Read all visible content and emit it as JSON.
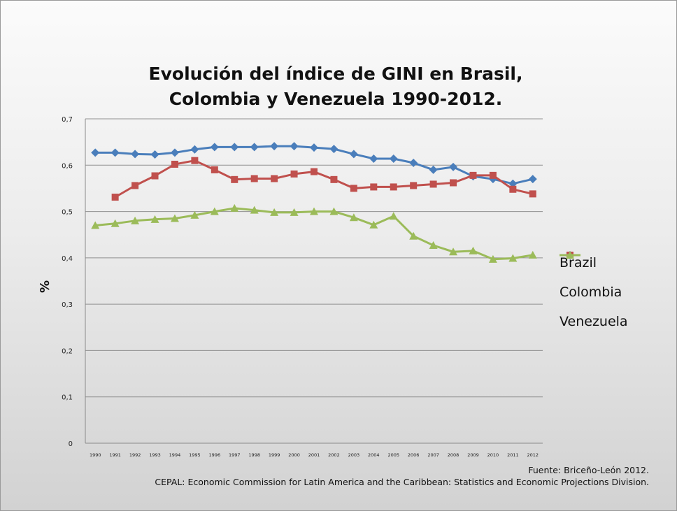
{
  "chart_data": {
    "type": "line",
    "title": "Evolución del índice de GINI en Brasil, Colombia y Venezuela 1990-2012.",
    "xlabel": "",
    "ylabel": "%",
    "ylim": [
      0,
      0.7
    ],
    "y_ticks": [
      "0",
      "0,1",
      "0,2",
      "0,3",
      "0,4",
      "0,5",
      "0,6",
      "0,7"
    ],
    "grid": true,
    "legend_position": "right",
    "categories": [
      "1990",
      "1991",
      "1992",
      "1993",
      "1994",
      "1995",
      "1996",
      "1997",
      "1998",
      "1999",
      "2000",
      "2001",
      "2002",
      "2003",
      "2004",
      "2005",
      "2006",
      "2007",
      "2008",
      "2009",
      "2010",
      "2011",
      "2012"
    ],
    "series": [
      {
        "name": "Brazil",
        "color": "#4a7ebb",
        "marker": "diamond",
        "values": [
          0.627,
          0.627,
          0.624,
          0.623,
          0.627,
          0.634,
          0.639,
          0.639,
          0.639,
          0.641,
          0.641,
          0.638,
          0.635,
          0.624,
          0.614,
          0.614,
          0.605,
          0.59,
          0.596,
          0.576,
          0.57,
          0.56,
          0.57
        ]
      },
      {
        "name": "Colombia",
        "color": "#c0504d",
        "marker": "square",
        "values": [
          null,
          0.531,
          0.556,
          0.577,
          0.602,
          0.61,
          0.59,
          0.569,
          0.571,
          0.571,
          0.581,
          0.586,
          0.569,
          0.55,
          0.553,
          0.553,
          0.556,
          0.559,
          0.562,
          0.578,
          0.578,
          0.548,
          0.538
        ]
      },
      {
        "name": "Venezuela",
        "color": "#9bbb59",
        "marker": "triangle",
        "values": [
          0.47,
          0.474,
          0.48,
          0.483,
          0.485,
          0.492,
          0.5,
          0.507,
          0.503,
          0.498,
          0.498,
          0.5,
          0.5,
          0.487,
          0.471,
          0.49,
          0.447,
          0.427,
          0.413,
          0.415,
          0.397,
          0.399,
          0.406
        ]
      }
    ]
  },
  "source": {
    "line1": "Fuente: Briceño-León 2012.",
    "line2": "CEPAL: Economic Commission for Latin America and the Caribbean: Statistics and Economic Projections Division."
  }
}
